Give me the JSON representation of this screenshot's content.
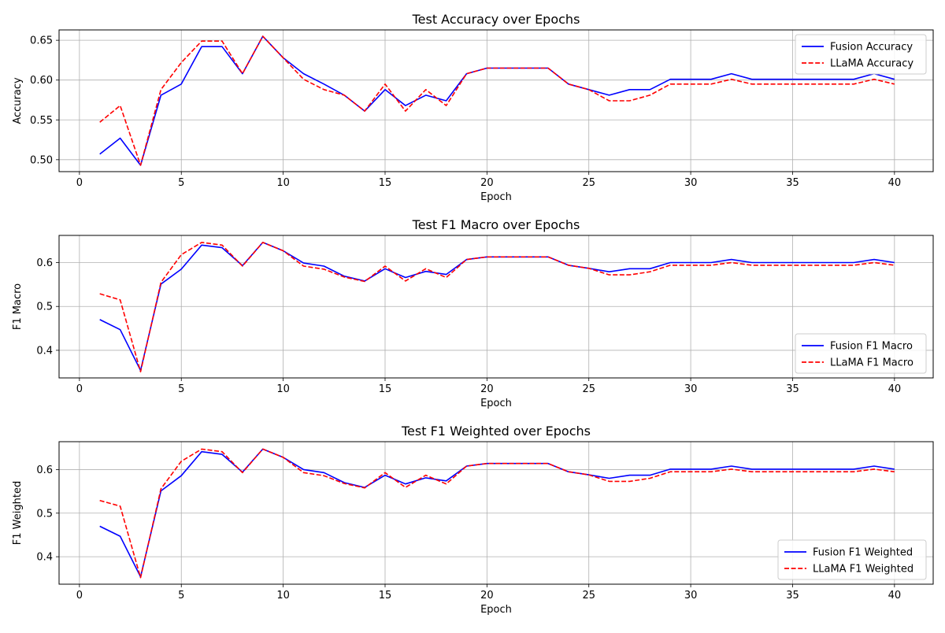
{
  "chart_data": [
    {
      "type": "line",
      "title": "Test Accuracy over Epochs",
      "xlabel": "Epoch",
      "ylabel": "Accuracy",
      "xlim": [
        -1,
        41.9
      ],
      "ylim": [
        0.485,
        0.663
      ],
      "xticks": [
        0,
        5,
        10,
        15,
        20,
        25,
        30,
        35,
        40
      ],
      "yticks": [
        0.5,
        0.55,
        0.6,
        0.65
      ],
      "ytick_labels": [
        "0.50",
        "0.55",
        "0.60",
        "0.65"
      ],
      "grid": true,
      "legend_position": "upper right",
      "x": [
        1,
        2,
        3,
        4,
        5,
        6,
        7,
        8,
        9,
        10,
        11,
        12,
        13,
        14,
        15,
        16,
        17,
        18,
        19,
        20,
        21,
        22,
        23,
        24,
        25,
        26,
        27,
        28,
        29,
        30,
        31,
        32,
        33,
        34,
        35,
        36,
        37,
        38,
        39,
        40
      ],
      "series": [
        {
          "name": "Fusion Accuracy",
          "color": "#0000ff",
          "dash": "solid",
          "values": [
            0.507,
            0.527,
            0.493,
            0.581,
            0.595,
            0.642,
            0.642,
            0.608,
            0.655,
            0.628,
            0.608,
            0.595,
            0.581,
            0.561,
            0.588,
            0.568,
            0.581,
            0.574,
            0.608,
            0.615,
            0.615,
            0.615,
            0.615,
            0.595,
            0.588,
            0.581,
            0.588,
            0.588,
            0.601,
            0.601,
            0.601,
            0.608,
            0.601,
            0.601,
            0.601,
            0.601,
            0.601,
            0.601,
            0.608,
            0.601
          ]
        },
        {
          "name": "LLaMA Accuracy",
          "color": "#ff0000",
          "dash": "dashed",
          "values": [
            0.547,
            0.568,
            0.493,
            0.588,
            0.622,
            0.649,
            0.649,
            0.608,
            0.655,
            0.628,
            0.601,
            0.588,
            0.581,
            0.561,
            0.595,
            0.561,
            0.588,
            0.568,
            0.608,
            0.615,
            0.615,
            0.615,
            0.615,
            0.595,
            0.588,
            0.574,
            0.574,
            0.581,
            0.595,
            0.595,
            0.595,
            0.601,
            0.595,
            0.595,
            0.595,
            0.595,
            0.595,
            0.595,
            0.601,
            0.595
          ]
        }
      ]
    },
    {
      "type": "line",
      "title": "Test F1 Macro over Epochs",
      "xlabel": "Epoch",
      "ylabel": "F1 Macro",
      "xlim": [
        -1,
        41.9
      ],
      "ylim": [
        0.337,
        0.662
      ],
      "xticks": [
        0,
        5,
        10,
        15,
        20,
        25,
        30,
        35,
        40
      ],
      "yticks": [
        0.4,
        0.5,
        0.6
      ],
      "ytick_labels": [
        "0.4",
        "0.5",
        "0.6"
      ],
      "grid": true,
      "legend_position": "lower right",
      "x": [
        1,
        2,
        3,
        4,
        5,
        6,
        7,
        8,
        9,
        10,
        11,
        12,
        13,
        14,
        15,
        16,
        17,
        18,
        19,
        20,
        21,
        22,
        23,
        24,
        25,
        26,
        27,
        28,
        29,
        30,
        31,
        32,
        33,
        34,
        35,
        36,
        37,
        38,
        39,
        40
      ],
      "series": [
        {
          "name": "Fusion F1 Macro",
          "color": "#0000ff",
          "dash": "solid",
          "values": [
            0.47,
            0.447,
            0.354,
            0.551,
            0.585,
            0.64,
            0.634,
            0.593,
            0.646,
            0.627,
            0.599,
            0.592,
            0.569,
            0.558,
            0.586,
            0.566,
            0.58,
            0.573,
            0.607,
            0.613,
            0.613,
            0.613,
            0.613,
            0.594,
            0.587,
            0.579,
            0.586,
            0.586,
            0.6,
            0.6,
            0.6,
            0.607,
            0.6,
            0.6,
            0.6,
            0.6,
            0.6,
            0.6,
            0.607,
            0.6
          ]
        },
        {
          "name": "LLaMA F1 Macro",
          "color": "#ff0000",
          "dash": "dashed",
          "values": [
            0.529,
            0.515,
            0.351,
            0.555,
            0.618,
            0.646,
            0.64,
            0.592,
            0.646,
            0.627,
            0.592,
            0.585,
            0.567,
            0.557,
            0.592,
            0.558,
            0.586,
            0.566,
            0.607,
            0.613,
            0.613,
            0.613,
            0.613,
            0.594,
            0.587,
            0.572,
            0.572,
            0.579,
            0.594,
            0.594,
            0.594,
            0.6,
            0.594,
            0.594,
            0.594,
            0.594,
            0.594,
            0.594,
            0.6,
            0.594
          ]
        }
      ]
    },
    {
      "type": "line",
      "title": "Test F1 Weighted over Epochs",
      "xlabel": "Epoch",
      "ylabel": "F1 Weighted",
      "xlim": [
        -1,
        41.9
      ],
      "ylim": [
        0.337,
        0.664
      ],
      "xticks": [
        0,
        5,
        10,
        15,
        20,
        25,
        30,
        35,
        40
      ],
      "yticks": [
        0.4,
        0.5,
        0.6
      ],
      "ytick_labels": [
        "0.4",
        "0.5",
        "0.6"
      ],
      "grid": true,
      "legend_position": "lower right",
      "x": [
        1,
        2,
        3,
        4,
        5,
        6,
        7,
        8,
        9,
        10,
        11,
        12,
        13,
        14,
        15,
        16,
        17,
        18,
        19,
        20,
        21,
        22,
        23,
        24,
        25,
        26,
        27,
        28,
        29,
        30,
        31,
        32,
        33,
        34,
        35,
        36,
        37,
        38,
        39,
        40
      ],
      "series": [
        {
          "name": "Fusion F1 Weighted",
          "color": "#0000ff",
          "dash": "solid",
          "values": [
            0.47,
            0.447,
            0.354,
            0.551,
            0.586,
            0.641,
            0.635,
            0.594,
            0.647,
            0.628,
            0.6,
            0.593,
            0.57,
            0.559,
            0.587,
            0.567,
            0.581,
            0.574,
            0.608,
            0.614,
            0.614,
            0.614,
            0.614,
            0.595,
            0.588,
            0.58,
            0.587,
            0.587,
            0.601,
            0.601,
            0.601,
            0.608,
            0.601,
            0.601,
            0.601,
            0.601,
            0.601,
            0.601,
            0.608,
            0.601
          ]
        },
        {
          "name": "LLaMA F1 Weighted",
          "color": "#ff0000",
          "dash": "dashed",
          "values": [
            0.529,
            0.516,
            0.352,
            0.556,
            0.619,
            0.647,
            0.641,
            0.593,
            0.647,
            0.628,
            0.593,
            0.586,
            0.568,
            0.558,
            0.593,
            0.559,
            0.587,
            0.567,
            0.608,
            0.614,
            0.614,
            0.614,
            0.614,
            0.595,
            0.588,
            0.573,
            0.573,
            0.58,
            0.595,
            0.595,
            0.595,
            0.601,
            0.595,
            0.595,
            0.595,
            0.595,
            0.595,
            0.595,
            0.601,
            0.595
          ]
        }
      ]
    }
  ]
}
